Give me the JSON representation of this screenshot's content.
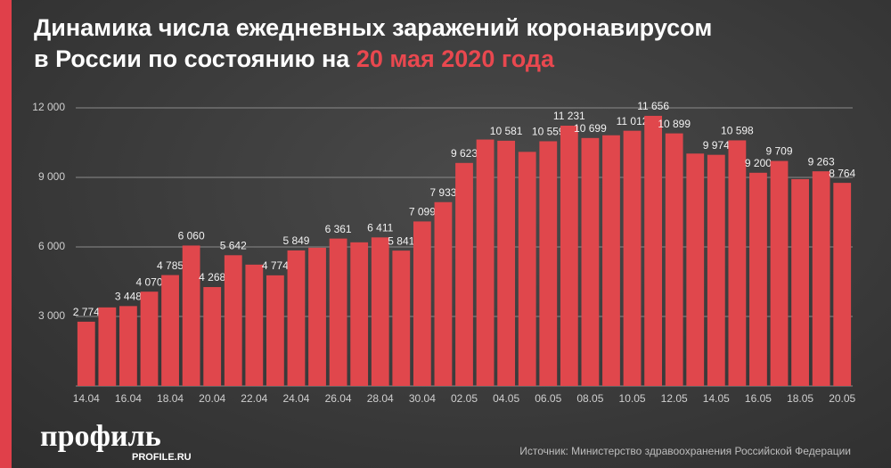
{
  "chart_data": {
    "type": "bar",
    "title": "Динамика числа ежедневных заражений коронавирусом",
    "subtitle": "в России по состоянию на",
    "subtitle_highlight": "20 мая 2020 года",
    "source": "Источник: Министерство здравоохранения Российской Федерации",
    "categories": [
      "14.04",
      null,
      "16.04",
      null,
      "18.04",
      null,
      "20.04",
      null,
      "22.04",
      null,
      "24.04",
      null,
      "26.04",
      null,
      "28.04",
      null,
      "30.04",
      null,
      "02.05",
      null,
      "04.05",
      null,
      "06.05",
      null,
      "08.05",
      null,
      "10.05",
      null,
      "12.05",
      null,
      "14.05",
      null,
      "16.05",
      null,
      "18.05",
      null,
      "20.05"
    ],
    "values": [
      2774,
      3390,
      3448,
      4070,
      4785,
      6060,
      4268,
      5642,
      5236,
      4774,
      5849,
      5966,
      6361,
      6198,
      6411,
      5841,
      7099,
      7933,
      9623,
      10633,
      10581,
      10102,
      10559,
      11231,
      10699,
      10817,
      11012,
      11656,
      10899,
      10028,
      9974,
      10598,
      9200,
      9709,
      8926,
      9263,
      8764
    ],
    "value_labels": [
      "2 774",
      null,
      "3 448",
      "4 070",
      "4 785",
      "6 060",
      "4 268",
      "5 642",
      null,
      "4 774",
      "5 849",
      null,
      "6 361",
      null,
      "6 411",
      "5 841",
      "7 099",
      "7 933",
      "9 623",
      null,
      "10 581",
      null,
      "10 559",
      "11 231",
      "10 699",
      null,
      "11 012",
      "11 656",
      "10 899",
      null,
      "9 974",
      "10 598",
      "9 200",
      "9 709",
      null,
      "9 263",
      "8 764"
    ],
    "color": "#e0474c",
    "ylim": [
      0,
      12000
    ],
    "yticks": [
      {
        "value": 3000,
        "label": "3 000"
      },
      {
        "value": 6000,
        "label": "6 000"
      },
      {
        "value": 9000,
        "label": "9 000"
      },
      {
        "value": 12000,
        "label": "12 000"
      }
    ],
    "grid": true
  },
  "logo": "профиль",
  "logo_url": "PROFILE.RU"
}
